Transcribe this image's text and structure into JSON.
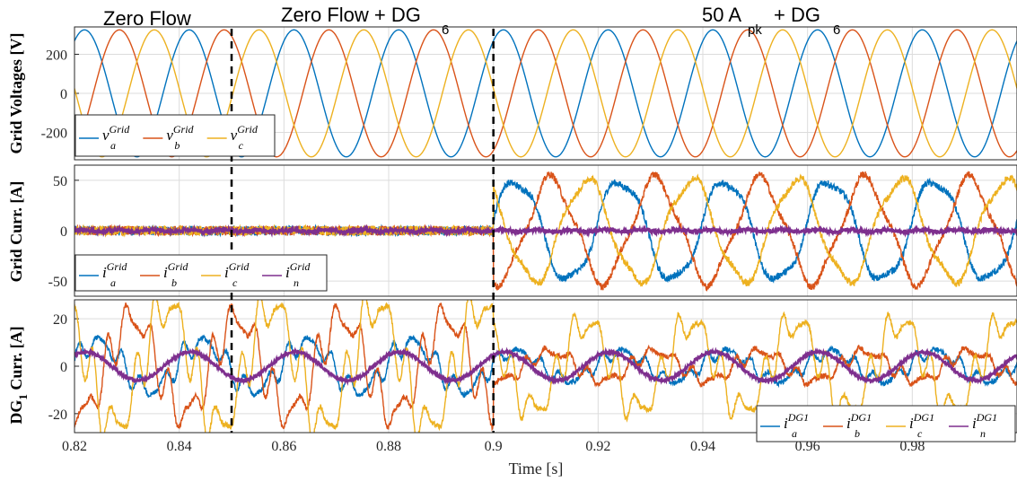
{
  "colors": {
    "a": "#0072BD",
    "b": "#D95319",
    "c": "#EDB120",
    "n": "#7E2F8E"
  },
  "chart_data": {
    "type": "line",
    "xlabel": "Time [s]",
    "xlim": [
      0.82,
      1.0
    ],
    "xticks": [
      "0.82",
      "0.84",
      "0.86",
      "0.88",
      "0.9",
      "0.92",
      "0.94",
      "0.96",
      "0.98"
    ],
    "event_times": [
      0.85,
      0.9
    ],
    "regions": [
      {
        "label": "Zero Flow",
        "sub": ""
      },
      {
        "label": "Zero Flow + DG",
        "sub": "6"
      },
      {
        "label": "50 A",
        "label_sub": "pk",
        "label2": " + DG",
        "sub": "6"
      }
    ],
    "panels": [
      {
        "ylabel": "Grid Voltages [V]",
        "ylim": [
          -340,
          340
        ],
        "yticks": [
          "200",
          "0",
          "-200"
        ],
        "yticks_values": [
          200,
          0,
          -200
        ],
        "legend": [
          {
            "base": "v",
            "sub": "a",
            "sup": "Grid",
            "color": "a"
          },
          {
            "base": "v",
            "sub": "b",
            "sup": "Grid",
            "color": "b"
          },
          {
            "base": "v",
            "sub": "c",
            "sup": "Grid",
            "color": "c"
          }
        ],
        "series": [
          {
            "name": "v_a^Grid",
            "amplitude": 325,
            "frequency_hz": 50,
            "phase_deg": 0
          },
          {
            "name": "v_b^Grid",
            "amplitude": 325,
            "frequency_hz": 50,
            "phase_deg": -120
          },
          {
            "name": "v_c^Grid",
            "amplitude": 325,
            "frequency_hz": 50,
            "phase_deg": 120
          }
        ]
      },
      {
        "ylabel": "Grid Curr. [A]",
        "ylim": [
          -65,
          65
        ],
        "yticks": [
          "50",
          "0",
          "-50"
        ],
        "yticks_values": [
          50,
          0,
          -50
        ],
        "legend": [
          {
            "base": "i",
            "sub": "a",
            "sup": "Grid",
            "color": "a"
          },
          {
            "base": "i",
            "sub": "b",
            "sup": "Grid",
            "color": "b"
          },
          {
            "base": "i",
            "sub": "c",
            "sup": "Grid",
            "color": "c"
          },
          {
            "base": "i",
            "sub": "n",
            "sup": "Grid",
            "color": "n"
          }
        ],
        "series": [
          {
            "name": "i_a^Grid",
            "amplitude_before_0.9": 3,
            "amplitude_after_0.9": 50
          },
          {
            "name": "i_b^Grid",
            "amplitude_before_0.9": 3,
            "amplitude_after_0.9": 50
          },
          {
            "name": "i_c^Grid",
            "amplitude_before_0.9": 3,
            "amplitude_after_0.9": 50
          },
          {
            "name": "i_n^Grid",
            "amplitude_before_0.9": 2,
            "amplitude_after_0.9": 2
          }
        ]
      },
      {
        "ylabel": "DG",
        "ylabel_sub": "1",
        "ylabel2": " Curr. [A]",
        "ylim": [
          -28,
          28
        ],
        "yticks": [
          "20",
          "0",
          "-20"
        ],
        "yticks_values": [
          20,
          0,
          -20
        ],
        "legend": [
          {
            "base": "i",
            "sub": "a",
            "sup": "DG1",
            "color": "a"
          },
          {
            "base": "i",
            "sub": "b",
            "sup": "DG1",
            "color": "b"
          },
          {
            "base": "i",
            "sub": "c",
            "sup": "DG1",
            "color": "c"
          },
          {
            "base": "i",
            "sub": "n",
            "sup": "DG1",
            "color": "n"
          }
        ],
        "series": [
          {
            "name": "i_a^DG1",
            "amplitude_before_0.9": 10,
            "amplitude_after_0.9": 6
          },
          {
            "name": "i_b^DG1",
            "amplitude_before_0.9": 20,
            "amplitude_after_0.9": 6
          },
          {
            "name": "i_c^DG1",
            "amplitude_before_0.9": 25,
            "amplitude_after_0.9": 18
          },
          {
            "name": "i_n^DG1",
            "amplitude_before_0.9": 6,
            "amplitude_after_0.9": 6
          }
        ]
      }
    ]
  }
}
